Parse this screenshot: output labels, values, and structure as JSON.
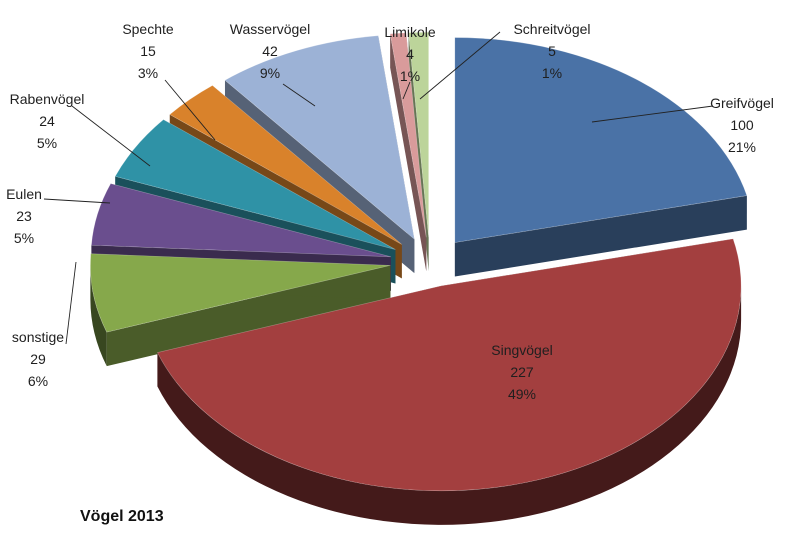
{
  "chart_data": {
    "type": "pie",
    "title": "Vögel 2013",
    "slices": [
      {
        "name": "Greifvögel",
        "value": 100,
        "percent": "21%",
        "color": "#4a72a6"
      },
      {
        "name": "Singvögel",
        "value": 227,
        "percent": "49%",
        "color": "#a33f3f"
      },
      {
        "name": "sonstige",
        "value": 29,
        "percent": "6%",
        "color": "#86a84b"
      },
      {
        "name": "Eulen",
        "value": 23,
        "percent": "5%",
        "color": "#6a4e8e"
      },
      {
        "name": "Rabenvögel",
        "value": 24,
        "percent": "5%",
        "color": "#2f92a6"
      },
      {
        "name": "Spechte",
        "value": 15,
        "percent": "3%",
        "color": "#d9822b"
      },
      {
        "name": "Wasservögel",
        "value": 42,
        "percent": "9%",
        "color": "#9cb2d6"
      },
      {
        "name": "Limikole",
        "value": 4,
        "percent": "1%",
        "color": "#d99b9b"
      },
      {
        "name": "Schreitvögel",
        "value": 5,
        "percent": "1%",
        "color": "#bcd49a"
      }
    ]
  }
}
